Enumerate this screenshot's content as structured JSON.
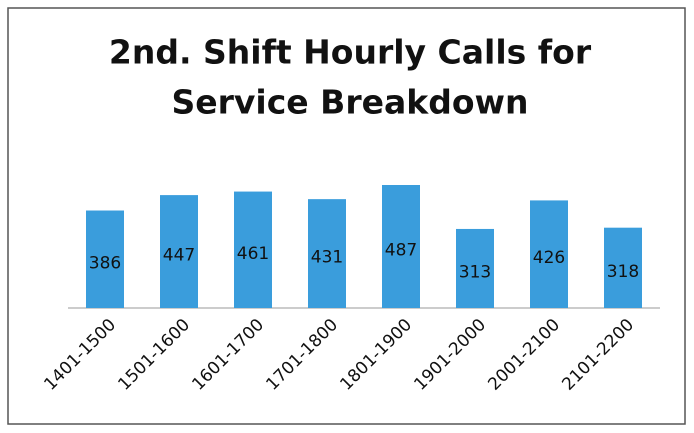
{
  "chart_data": {
    "type": "bar",
    "title": [
      "2nd. Shift Hourly Calls for",
      "Service Breakdown"
    ],
    "categories": [
      "1401-1500",
      "1501-1600",
      "1601-1700",
      "1701-1800",
      "1801-1900",
      "1901-2000",
      "2001-2100",
      "2101-2200"
    ],
    "values": [
      386,
      447,
      461,
      431,
      487,
      313,
      426,
      318
    ],
    "color": "#3a9ddc"
  }
}
